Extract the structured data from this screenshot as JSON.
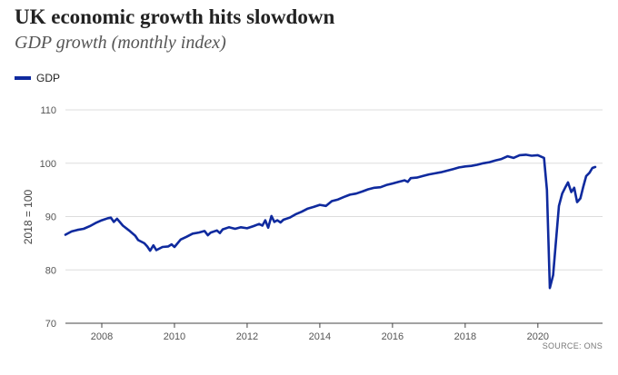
{
  "chart_data": {
    "type": "line",
    "title": "UK economic growth hits slowdown",
    "subtitle": "GDP growth (monthly index)",
    "ylabel": "2018 = 100",
    "xlabel": "",
    "source": "SOURCE: ONS",
    "ylim": [
      70,
      110
    ],
    "xlim": [
      2007.0,
      2021.78
    ],
    "yticks": [
      70,
      80,
      90,
      100,
      110
    ],
    "xticks": [
      2008,
      2010,
      2012,
      2014,
      2016,
      2018,
      2020
    ],
    "grid": "horizontal",
    "legend_position": "top-left",
    "series": [
      {
        "name": "GDP",
        "color": "#0f2a9e",
        "points": [
          [
            2007.0,
            86.6
          ],
          [
            2007.17,
            87.2
          ],
          [
            2007.33,
            87.5
          ],
          [
            2007.5,
            87.7
          ],
          [
            2007.67,
            88.2
          ],
          [
            2007.83,
            88.8
          ],
          [
            2008.0,
            89.3
          ],
          [
            2008.17,
            89.7
          ],
          [
            2008.25,
            89.8
          ],
          [
            2008.33,
            89.0
          ],
          [
            2008.42,
            89.6
          ],
          [
            2008.58,
            88.3
          ],
          [
            2008.75,
            87.4
          ],
          [
            2008.92,
            86.4
          ],
          [
            2009.0,
            85.6
          ],
          [
            2009.17,
            85.0
          ],
          [
            2009.25,
            84.4
          ],
          [
            2009.33,
            83.6
          ],
          [
            2009.42,
            84.6
          ],
          [
            2009.5,
            83.7
          ],
          [
            2009.67,
            84.3
          ],
          [
            2009.83,
            84.4
          ],
          [
            2009.92,
            84.8
          ],
          [
            2010.0,
            84.3
          ],
          [
            2010.17,
            85.7
          ],
          [
            2010.33,
            86.2
          ],
          [
            2010.5,
            86.8
          ],
          [
            2010.67,
            87.0
          ],
          [
            2010.83,
            87.3
          ],
          [
            2010.92,
            86.5
          ],
          [
            2011.0,
            87.0
          ],
          [
            2011.17,
            87.4
          ],
          [
            2011.25,
            86.9
          ],
          [
            2011.33,
            87.6
          ],
          [
            2011.5,
            88.0
          ],
          [
            2011.67,
            87.7
          ],
          [
            2011.83,
            88.0
          ],
          [
            2012.0,
            87.8
          ],
          [
            2012.17,
            88.2
          ],
          [
            2012.33,
            88.6
          ],
          [
            2012.42,
            88.3
          ],
          [
            2012.5,
            89.3
          ],
          [
            2012.58,
            87.9
          ],
          [
            2012.67,
            90.1
          ],
          [
            2012.75,
            89.0
          ],
          [
            2012.83,
            89.3
          ],
          [
            2012.92,
            88.9
          ],
          [
            2013.0,
            89.4
          ],
          [
            2013.17,
            89.8
          ],
          [
            2013.33,
            90.4
          ],
          [
            2013.5,
            90.9
          ],
          [
            2013.67,
            91.5
          ],
          [
            2013.83,
            91.8
          ],
          [
            2014.0,
            92.2
          ],
          [
            2014.17,
            92.0
          ],
          [
            2014.33,
            92.9
          ],
          [
            2014.5,
            93.2
          ],
          [
            2014.67,
            93.7
          ],
          [
            2014.83,
            94.1
          ],
          [
            2015.0,
            94.3
          ],
          [
            2015.17,
            94.7
          ],
          [
            2015.33,
            95.1
          ],
          [
            2015.5,
            95.4
          ],
          [
            2015.67,
            95.5
          ],
          [
            2015.83,
            95.9
          ],
          [
            2016.0,
            96.2
          ],
          [
            2016.17,
            96.5
          ],
          [
            2016.33,
            96.8
          ],
          [
            2016.42,
            96.5
          ],
          [
            2016.5,
            97.2
          ],
          [
            2016.67,
            97.3
          ],
          [
            2016.83,
            97.6
          ],
          [
            2017.0,
            97.9
          ],
          [
            2017.17,
            98.1
          ],
          [
            2017.33,
            98.3
          ],
          [
            2017.5,
            98.6
          ],
          [
            2017.67,
            98.9
          ],
          [
            2017.83,
            99.2
          ],
          [
            2018.0,
            99.4
          ],
          [
            2018.17,
            99.5
          ],
          [
            2018.33,
            99.7
          ],
          [
            2018.5,
            100.0
          ],
          [
            2018.67,
            100.2
          ],
          [
            2018.83,
            100.5
          ],
          [
            2019.0,
            100.8
          ],
          [
            2019.17,
            101.3
          ],
          [
            2019.33,
            101.0
          ],
          [
            2019.5,
            101.5
          ],
          [
            2019.67,
            101.6
          ],
          [
            2019.83,
            101.4
          ],
          [
            2020.0,
            101.5
          ],
          [
            2020.17,
            101.0
          ],
          [
            2020.25,
            95.0
          ],
          [
            2020.33,
            76.6
          ],
          [
            2020.42,
            79.0
          ],
          [
            2020.5,
            85.5
          ],
          [
            2020.58,
            92.0
          ],
          [
            2020.67,
            94.3
          ],
          [
            2020.75,
            95.4
          ],
          [
            2020.83,
            96.4
          ],
          [
            2020.92,
            94.6
          ],
          [
            2021.0,
            95.4
          ],
          [
            2021.08,
            92.7
          ],
          [
            2021.17,
            93.4
          ],
          [
            2021.25,
            95.6
          ],
          [
            2021.33,
            97.6
          ],
          [
            2021.42,
            98.2
          ],
          [
            2021.5,
            99.1
          ],
          [
            2021.58,
            99.3
          ]
        ]
      }
    ]
  }
}
